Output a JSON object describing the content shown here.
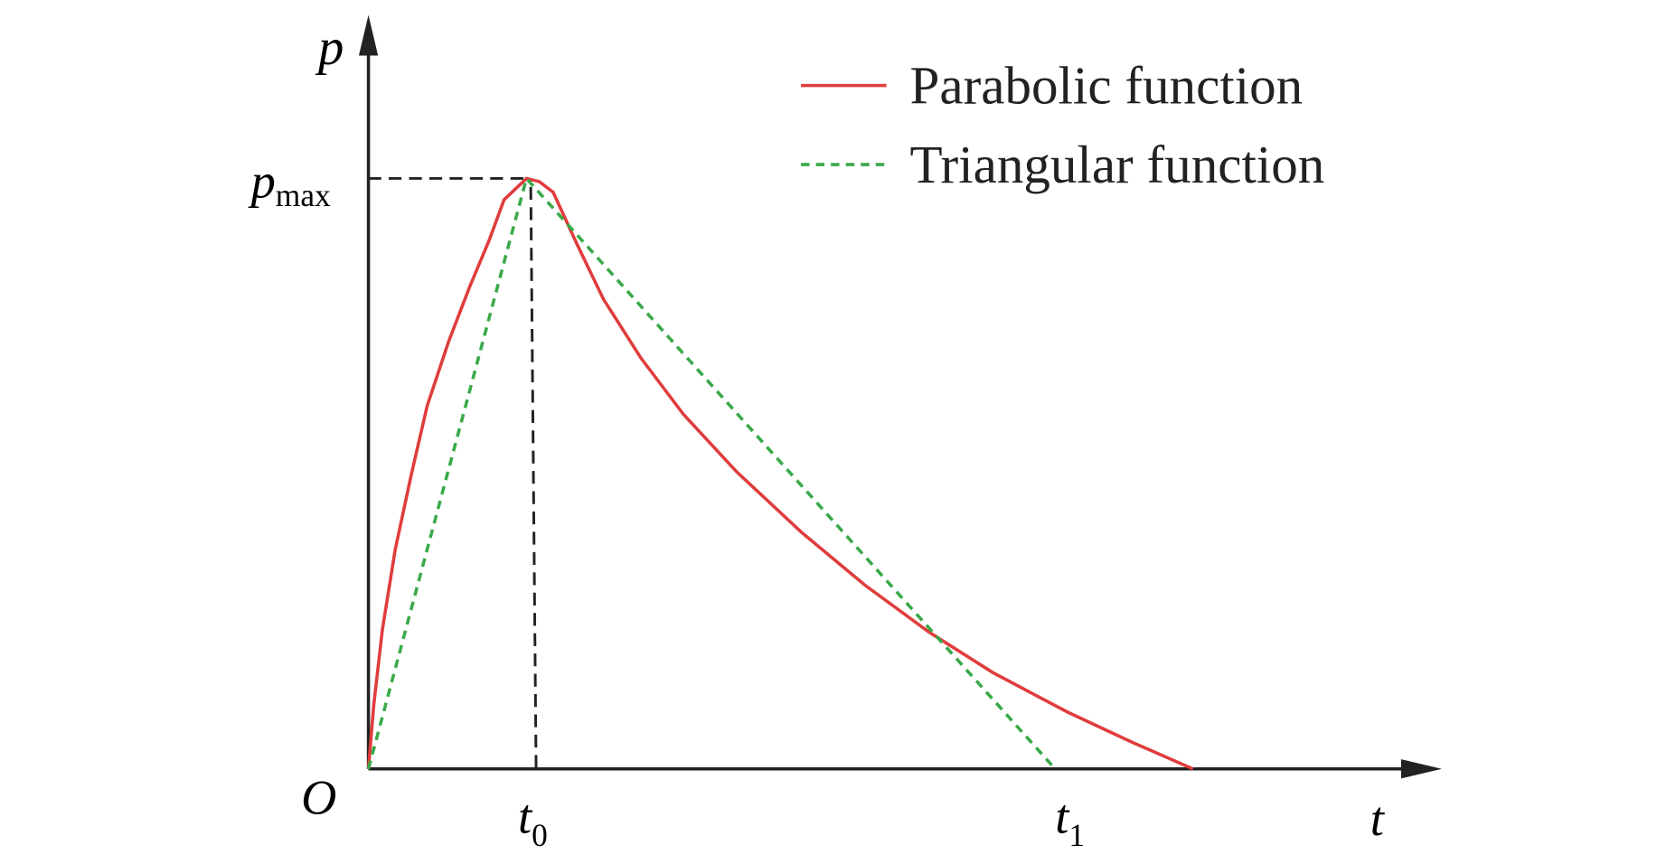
{
  "axes": {
    "y_label": "p",
    "x_label": "t",
    "origin": "O"
  },
  "markers": {
    "p_max": {
      "base": "p",
      "sub": "max"
    },
    "t0": {
      "base": "t",
      "sub": "0"
    },
    "t1": {
      "base": "t",
      "sub": "1"
    }
  },
  "legend": [
    {
      "label": "Parabolic function",
      "color": "#e03c3c"
    },
    {
      "label": "Triangular function",
      "color": "#3aa94a"
    }
  ]
}
